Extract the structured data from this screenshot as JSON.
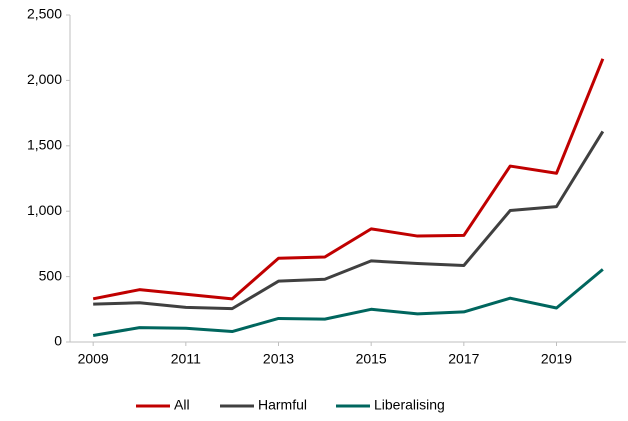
{
  "chart_data": {
    "type": "line",
    "x": [
      2009,
      2010,
      2011,
      2012,
      2013,
      2014,
      2015,
      2016,
      2017,
      2018,
      2019,
      2020
    ],
    "series": [
      {
        "name": "All",
        "color": "#c00000",
        "values": [
          330,
          400,
          365,
          330,
          640,
          650,
          865,
          810,
          815,
          1345,
          1290,
          2165
        ]
      },
      {
        "name": "Harmful",
        "color": "#404040",
        "values": [
          290,
          300,
          265,
          255,
          465,
          480,
          620,
          600,
          585,
          1005,
          1035,
          1610
        ]
      },
      {
        "name": "Liberalising",
        "color": "#00665e",
        "values": [
          50,
          110,
          105,
          80,
          180,
          175,
          250,
          215,
          230,
          335,
          260,
          555
        ]
      }
    ],
    "xlim": [
      2008.5,
      2020.5
    ],
    "xticks": [
      2009,
      2011,
      2013,
      2015,
      2017,
      2019
    ],
    "ylim": [
      0,
      2500
    ],
    "yticks": [
      0,
      500,
      {
        "value": 1000,
        "label": "1,000"
      },
      {
        "value": 1500,
        "label": "1,500"
      },
      {
        "value": 2000,
        "label": "2,000"
      },
      {
        "value": 2500,
        "label": "2,500"
      }
    ],
    "grid": false,
    "legend": "bottom"
  }
}
